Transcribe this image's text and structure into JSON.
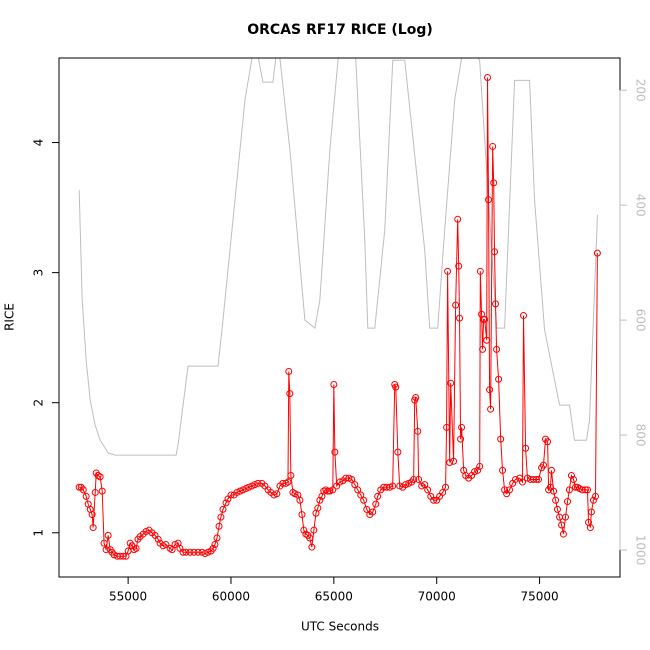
{
  "chart_data": {
    "type": "line",
    "title": "ORCAS RF17 RICE (Log)",
    "x_label": "UTC Seconds",
    "y_label": "RICE",
    "xlim": [
      51640,
      78910
    ],
    "ylim": [
      0.66,
      4.65
    ],
    "y2lim": [
      1047,
      144
    ],
    "xticks": [
      55000,
      60000,
      65000,
      70000,
      75000
    ],
    "yticks": [
      1,
      2,
      3,
      4
    ],
    "y2ticks": [
      200,
      400,
      600,
      800,
      1000
    ],
    "grid": false,
    "series": [
      {
        "color": "#ff0000",
        "markers": true,
        "x": [
          52620,
          52720,
          52820,
          52960,
          53060,
          53160,
          53250,
          53300,
          53400,
          53450,
          53540,
          53640,
          53740,
          53830,
          53930,
          54030,
          54130,
          54220,
          54320,
          54470,
          54610,
          54760,
          54900,
          55000,
          55100,
          55190,
          55290,
          55390,
          55480,
          55580,
          55730,
          55870,
          56020,
          56160,
          56310,
          56460,
          56550,
          56700,
          56840,
          57040,
          57140,
          57280,
          57430,
          57520,
          57670,
          57810,
          58010,
          58200,
          58400,
          58590,
          58740,
          58880,
          59030,
          59130,
          59220,
          59320,
          59420,
          59510,
          59610,
          59760,
          59850,
          60000,
          60150,
          60290,
          60440,
          60580,
          60730,
          60870,
          61020,
          61160,
          61310,
          61500,
          61650,
          61800,
          61940,
          62090,
          62230,
          62380,
          62520,
          62670,
          62770,
          62810,
          62860,
          62910,
          63010,
          63110,
          63250,
          63350,
          63450,
          63540,
          63640,
          63740,
          63830,
          63930,
          64030,
          64130,
          64220,
          64320,
          64420,
          64510,
          64610,
          64710,
          64800,
          64950,
          65000,
          65050,
          65140,
          65290,
          65440,
          65580,
          65730,
          65870,
          66020,
          66160,
          66310,
          66450,
          66600,
          66750,
          66890,
          67040,
          67130,
          67280,
          67420,
          67570,
          67720,
          67860,
          67960,
          68010,
          68110,
          68200,
          68350,
          68490,
          68640,
          68780,
          68880,
          68930,
          68980,
          69080,
          69120,
          69270,
          69420,
          69560,
          69710,
          69850,
          70000,
          70140,
          70290,
          70430,
          70480,
          70530,
          70630,
          70680,
          70820,
          70920,
          71020,
          71070,
          71110,
          71160,
          71210,
          71310,
          71410,
          71550,
          71700,
          71840,
          71990,
          72090,
          72120,
          72180,
          72230,
          72280,
          72330,
          72430,
          72470,
          72520,
          72570,
          72620,
          72720,
          72770,
          72810,
          72860,
          72910,
          73010,
          73110,
          73200,
          73300,
          73400,
          73540,
          73690,
          73830,
          74030,
          74170,
          74220,
          74320,
          74410,
          74560,
          74710,
          74850,
          74950,
          75100,
          75190,
          75290,
          75390,
          75440,
          75530,
          75580,
          75680,
          75780,
          75870,
          75970,
          76070,
          76160,
          76260,
          76360,
          76450,
          76550,
          76650,
          76750,
          76840,
          76940,
          77080,
          77230,
          77330,
          77380,
          77470,
          77520,
          77620,
          77720,
          77810
        ],
        "values": [
          1.35,
          1.35,
          1.33,
          1.28,
          1.22,
          1.18,
          1.14,
          1.04,
          1.31,
          1.46,
          1.44,
          1.43,
          1.32,
          0.92,
          0.87,
          0.98,
          0.87,
          0.85,
          0.83,
          0.82,
          0.82,
          0.82,
          0.82,
          0.86,
          0.92,
          0.9,
          0.87,
          0.88,
          0.95,
          0.97,
          0.99,
          1.01,
          1.02,
          1.0,
          0.98,
          0.95,
          0.92,
          0.9,
          0.91,
          0.88,
          0.87,
          0.91,
          0.92,
          0.88,
          0.85,
          0.85,
          0.85,
          0.85,
          0.85,
          0.85,
          0.84,
          0.85,
          0.86,
          0.88,
          0.91,
          0.96,
          1.05,
          1.12,
          1.18,
          1.23,
          1.26,
          1.29,
          1.29,
          1.31,
          1.32,
          1.33,
          1.34,
          1.35,
          1.36,
          1.37,
          1.38,
          1.38,
          1.36,
          1.33,
          1.31,
          1.29,
          1.3,
          1.36,
          1.38,
          1.38,
          1.39,
          2.24,
          2.07,
          1.44,
          1.31,
          1.3,
          1.29,
          1.25,
          1.14,
          1.02,
          0.99,
          0.98,
          0.96,
          0.89,
          1.02,
          1.15,
          1.19,
          1.25,
          1.28,
          1.32,
          1.33,
          1.32,
          1.32,
          1.33,
          2.14,
          1.62,
          1.36,
          1.39,
          1.4,
          1.42,
          1.42,
          1.41,
          1.37,
          1.33,
          1.29,
          1.25,
          1.18,
          1.14,
          1.16,
          1.22,
          1.28,
          1.33,
          1.35,
          1.35,
          1.35,
          1.36,
          2.14,
          2.12,
          1.62,
          1.36,
          1.35,
          1.37,
          1.38,
          1.39,
          1.41,
          2.02,
          2.04,
          1.78,
          1.41,
          1.36,
          1.37,
          1.33,
          1.28,
          1.25,
          1.25,
          1.28,
          1.31,
          1.35,
          1.81,
          3.01,
          1.54,
          2.15,
          1.55,
          2.75,
          3.41,
          3.05,
          2.65,
          1.72,
          1.81,
          1.48,
          1.44,
          1.42,
          1.44,
          1.47,
          1.48,
          1.51,
          3.01,
          2.68,
          2.41,
          2.64,
          2.64,
          2.48,
          4.5,
          3.56,
          2.1,
          1.95,
          3.97,
          3.69,
          3.16,
          2.76,
          2.41,
          2.18,
          1.72,
          1.48,
          1.33,
          1.3,
          1.33,
          1.38,
          1.41,
          1.42,
          1.39,
          2.67,
          1.65,
          1.42,
          1.41,
          1.41,
          1.41,
          1.41,
          1.5,
          1.52,
          1.72,
          1.7,
          1.33,
          1.35,
          1.48,
          1.32,
          1.25,
          1.18,
          1.12,
          1.06,
          0.99,
          1.12,
          1.24,
          1.33,
          1.44,
          1.41,
          1.35,
          1.35,
          1.34,
          1.33,
          1.33,
          1.33,
          1.08,
          1.04,
          1.16,
          1.25,
          1.28,
          3.15
        ]
      },
      {
        "color": "#bebebe",
        "axis": "y2",
        "markers": false,
        "x": [
          52621,
          52767,
          52961,
          53155,
          53398,
          53641,
          54029,
          54369,
          57330,
          57427,
          57912,
          59369,
          59563,
          60194,
          60680,
          61165,
          61553,
          62039,
          62282,
          62864,
          63592,
          64078,
          64320,
          64806,
          65291,
          66019,
          66505,
          66650,
          66990,
          67476,
          67864,
          68447,
          69417,
          69660,
          70049,
          70388,
          70874,
          71359,
          72087,
          72913,
          73300,
          73786,
          74515,
          74757,
          75243,
          75971,
          76214,
          76456,
          76699,
          77282,
          77427,
          77815
        ],
        "values": [
          374,
          565,
          670,
          739,
          783,
          809,
          831,
          835,
          835,
          817,
          680,
          680,
          617,
          391,
          217,
          113,
          186,
          186,
          113,
          304,
          600,
          614,
          565,
          304,
          113,
          113,
          461,
          614,
          614,
          443,
          148,
          148,
          478,
          614,
          614,
          443,
          217,
          113,
          148,
          614,
          614,
          183,
          183,
          391,
          617,
          748,
          748,
          748,
          809,
          809,
          774,
          417
        ]
      }
    ]
  }
}
